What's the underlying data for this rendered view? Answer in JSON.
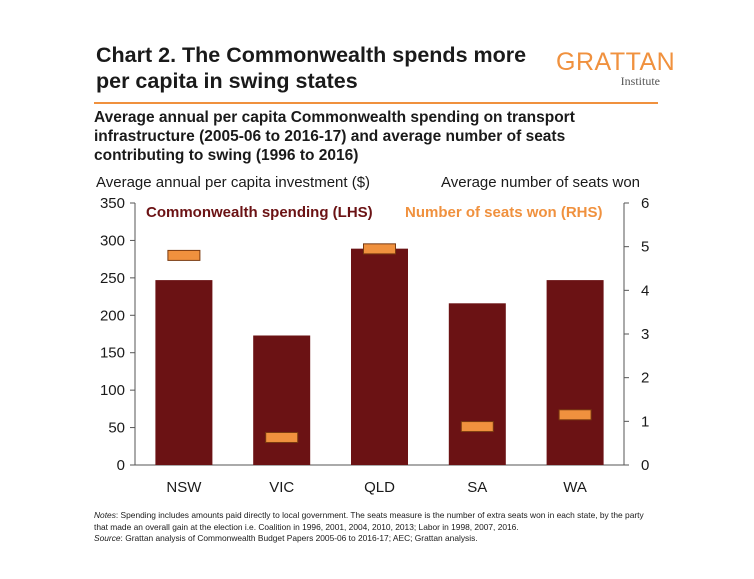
{
  "header": {
    "title": "Chart 2. The Commonwealth spends more per capita in swing states",
    "logo_main": "GRATTAN",
    "logo_sub": "Institute",
    "subtitle": "Average annual per capita Commonwealth spending on transport infrastructure (2005-06 to 2016-17) and average number of seats contributing to swing (1996 to 2016)"
  },
  "footer": {
    "notes_label": "Notes",
    "notes_text": ": Spending includes amounts paid directly to local government. The seats measure is the number of extra seats won in each state, by the party that made an overall gain at the election i.e. Coalition in 1996, 2001, 2004, 2010, 2013; Labor in 1998, 2007, 2016.",
    "source_label": "Source",
    "source_text": ": Grattan analysis of Commonwealth Budget Papers 2005-06 to 2016-17; AEC; Grattan analysis."
  },
  "colors": {
    "bar": "#6b1214",
    "marker": "#f0913e",
    "marker_stroke": "#7a3a10",
    "accent": "#f0913e"
  },
  "chart_data": {
    "type": "bar",
    "categories": [
      "NSW",
      "VIC",
      "QLD",
      "SA",
      "WA"
    ],
    "series": [
      {
        "name": "Commonwealth spending (LHS)",
        "type": "bar",
        "axis": "left",
        "values": [
          247,
          173,
          289,
          216,
          247
        ]
      },
      {
        "name": "Number of seats won (RHS)",
        "type": "marker",
        "axis": "right",
        "values": [
          4.8,
          0.63,
          4.95,
          0.88,
          1.15
        ]
      }
    ],
    "ylabel_left": "Average annual per capita investment ($)",
    "ylabel_right": "Average number of seats won",
    "ylim_left": [
      0,
      350
    ],
    "ylim_right": [
      0,
      6
    ],
    "yticks_left": [
      0,
      50,
      100,
      150,
      200,
      250,
      300,
      350
    ],
    "yticks_right": [
      0,
      1,
      2,
      3,
      4,
      5,
      6
    ],
    "grid": false,
    "legend": "top"
  }
}
